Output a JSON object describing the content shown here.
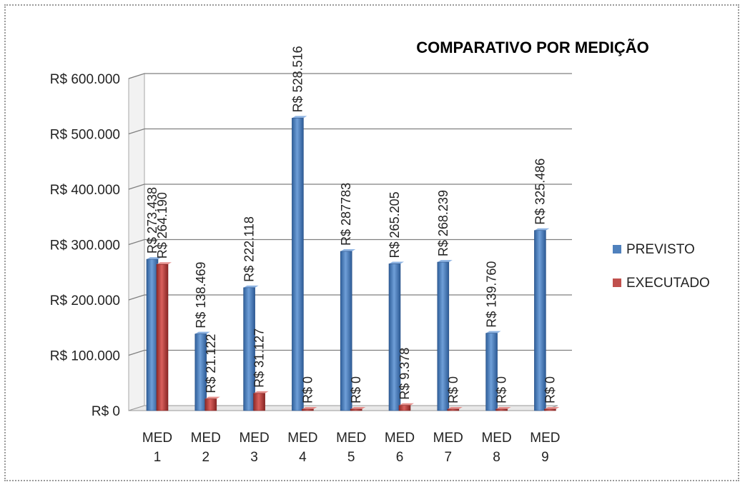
{
  "chart_data": {
    "type": "bar",
    "title": "COMPARATIVO POR MEDIÇÃO",
    "categories": [
      [
        "MED",
        "1"
      ],
      [
        "MED",
        "2"
      ],
      [
        "MED",
        "3"
      ],
      [
        "MED",
        "4"
      ],
      [
        "MED",
        "5"
      ],
      [
        "MED",
        "6"
      ],
      [
        "MED",
        "7"
      ],
      [
        "MED",
        "8"
      ],
      [
        "MED",
        "9"
      ]
    ],
    "series": [
      {
        "name": "PREVISTO",
        "color": "#4f81bd",
        "values": [
          273438,
          138469,
          222118,
          528516,
          287783,
          265205,
          268239,
          139760,
          325486
        ],
        "labels": [
          "R$ 273.438",
          "R$ 138.469",
          "R$ 222.118",
          "R$ 528.516",
          "R$ 287783",
          "R$ 265.205",
          "R$ 268.239",
          "R$ 139.760",
          "R$ 325.486"
        ]
      },
      {
        "name": "EXECUTADO",
        "color": "#c0504d",
        "values": [
          264190,
          21122,
          31127,
          0,
          0,
          9378,
          0,
          0,
          0
        ],
        "labels": [
          "R$ 264.190",
          "R$ 21.122",
          "R$ 31.127",
          "R$ 0",
          "R$ 0",
          "R$ 9.378",
          "R$ 0",
          "R$ 0",
          "R$ 0"
        ]
      }
    ],
    "yticks": [
      {
        "value": 0,
        "label": "R$ 0"
      },
      {
        "value": 100000,
        "label": "R$ 100.000"
      },
      {
        "value": 200000,
        "label": "R$ 200.000"
      },
      {
        "value": 300000,
        "label": "R$ 300.000"
      },
      {
        "value": 400000,
        "label": "R$ 400.000"
      },
      {
        "value": 500000,
        "label": "R$ 500.000"
      },
      {
        "value": 600000,
        "label": "R$ 600.000"
      }
    ],
    "ylim": [
      0,
      600000
    ],
    "grid": true,
    "legend_position": "right"
  }
}
